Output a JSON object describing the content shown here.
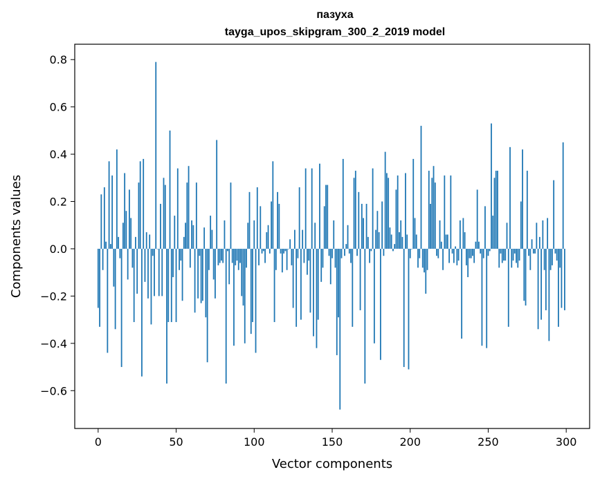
{
  "chart_data": {
    "type": "bar",
    "title": "пазуха",
    "subtitle": "tayga_upos_skipgram_300_2_2019 model",
    "xlabel": "Vector components",
    "ylabel": "Components values",
    "xlim": [
      -15,
      315
    ],
    "ylim": [
      -0.76,
      0.865
    ],
    "xticks": [
      0,
      50,
      100,
      150,
      200,
      250,
      300
    ],
    "xtick_labels": [
      "0",
      "50",
      "100",
      "150",
      "200",
      "250",
      "300"
    ],
    "yticks": [
      -0.6,
      -0.4,
      -0.2,
      0.0,
      0.2,
      0.4,
      0.6,
      0.8
    ],
    "ytick_labels": [
      "−0.6",
      "−0.4",
      "−0.2",
      "0.0",
      "0.2",
      "0.4",
      "0.6",
      "0.8"
    ],
    "grid": false,
    "bar_color": "#1f77b4",
    "values": [
      -0.25,
      -0.33,
      0.23,
      -0.09,
      0.26,
      0.03,
      -0.44,
      0.37,
      0.02,
      0.31,
      -0.16,
      -0.34,
      0.42,
      0.05,
      -0.04,
      -0.5,
      0.11,
      0.32,
      0.16,
      -0.13,
      0.25,
      0.13,
      -0.08,
      -0.31,
      0.05,
      -0.19,
      0.28,
      0.37,
      -0.54,
      0.38,
      -0.14,
      0.07,
      -0.21,
      0.06,
      -0.32,
      -0.03,
      -0.2,
      0.79,
      0.0,
      -0.2,
      0.19,
      -0.2,
      0.3,
      0.27,
      -0.57,
      -0.31,
      0.5,
      -0.31,
      -0.12,
      0.14,
      -0.31,
      0.34,
      -0.09,
      -0.05,
      -0.22,
      0.05,
      0.11,
      0.28,
      0.35,
      -0.08,
      0.12,
      0.1,
      -0.27,
      0.28,
      -0.21,
      -0.03,
      -0.23,
      -0.22,
      0.09,
      -0.29,
      -0.48,
      -0.09,
      0.14,
      0.08,
      -0.13,
      -0.21,
      0.46,
      -0.07,
      -0.06,
      -0.05,
      -0.06,
      0.12,
      -0.57,
      -0.01,
      -0.15,
      0.28,
      -0.06,
      -0.41,
      -0.07,
      -0.05,
      -0.09,
      -0.06,
      -0.2,
      -0.24,
      -0.4,
      -0.08,
      0.11,
      0.24,
      -0.36,
      -0.31,
      0.12,
      -0.44,
      0.26,
      -0.07,
      0.18,
      -0.02,
      -0.01,
      -0.06,
      0.07,
      0.1,
      -0.02,
      0.2,
      0.37,
      -0.31,
      -0.09,
      0.24,
      0.19,
      -0.02,
      -0.1,
      -0.02,
      -0.01,
      -0.09,
      0.0,
      0.04,
      -0.07,
      -0.25,
      0.08,
      -0.33,
      -0.04,
      0.26,
      -0.3,
      0.08,
      -0.06,
      0.34,
      -0.11,
      -0.05,
      -0.27,
      0.34,
      -0.37,
      0.11,
      -0.42,
      -0.3,
      0.36,
      -0.14,
      -0.08,
      0.18,
      0.27,
      0.27,
      -0.03,
      -0.15,
      -0.04,
      0.12,
      -0.08,
      -0.45,
      -0.29,
      -0.68,
      -0.04,
      0.38,
      -0.03,
      0.02,
      0.1,
      -0.02,
      -0.06,
      -0.33,
      0.3,
      0.33,
      -0.03,
      0.24,
      -0.26,
      0.19,
      0.13,
      -0.57,
      0.19,
      0.05,
      -0.06,
      -0.01,
      0.34,
      -0.4,
      0.08,
      0.16,
      0.07,
      -0.47,
      0.2,
      -0.03,
      0.41,
      0.32,
      0.3,
      0.09,
      0.06,
      -0.01,
      0.02,
      0.25,
      0.31,
      0.07,
      0.12,
      0.05,
      -0.5,
      0.32,
      0.06,
      -0.51,
      -0.04,
      0.0,
      0.38,
      0.13,
      0.06,
      -0.08,
      -0.04,
      0.52,
      -0.08,
      -0.1,
      -0.19,
      -0.09,
      0.33,
      0.19,
      0.3,
      0.35,
      0.28,
      -0.03,
      -0.04,
      0.12,
      0.03,
      -0.09,
      0.31,
      0.06,
      0.06,
      -0.06,
      0.31,
      -0.02,
      -0.06,
      0.01,
      -0.07,
      -0.05,
      0.12,
      -0.38,
      0.13,
      0.07,
      -0.07,
      -0.12,
      -0.04,
      -0.04,
      -0.03,
      -0.06,
      0.03,
      0.25,
      0.03,
      -0.02,
      -0.41,
      -0.04,
      0.18,
      -0.42,
      -0.03,
      -0.01,
      0.53,
      0.14,
      0.3,
      0.33,
      0.33,
      -0.08,
      -0.02,
      -0.06,
      -0.05,
      -0.05,
      0.11,
      -0.33,
      0.43,
      -0.08,
      -0.05,
      -0.02,
      -0.06,
      -0.08,
      -0.05,
      0.2,
      0.42,
      -0.22,
      -0.24,
      0.33,
      -0.03,
      -0.09,
      0.04,
      -0.02,
      -0.02,
      0.11,
      -0.34,
      0.05,
      -0.3,
      0.12,
      -0.09,
      -0.26,
      0.13,
      -0.39,
      -0.09,
      -0.07,
      0.29,
      -0.02,
      -0.05,
      -0.33,
      -0.08,
      -0.25,
      0.45,
      -0.26
    ]
  }
}
